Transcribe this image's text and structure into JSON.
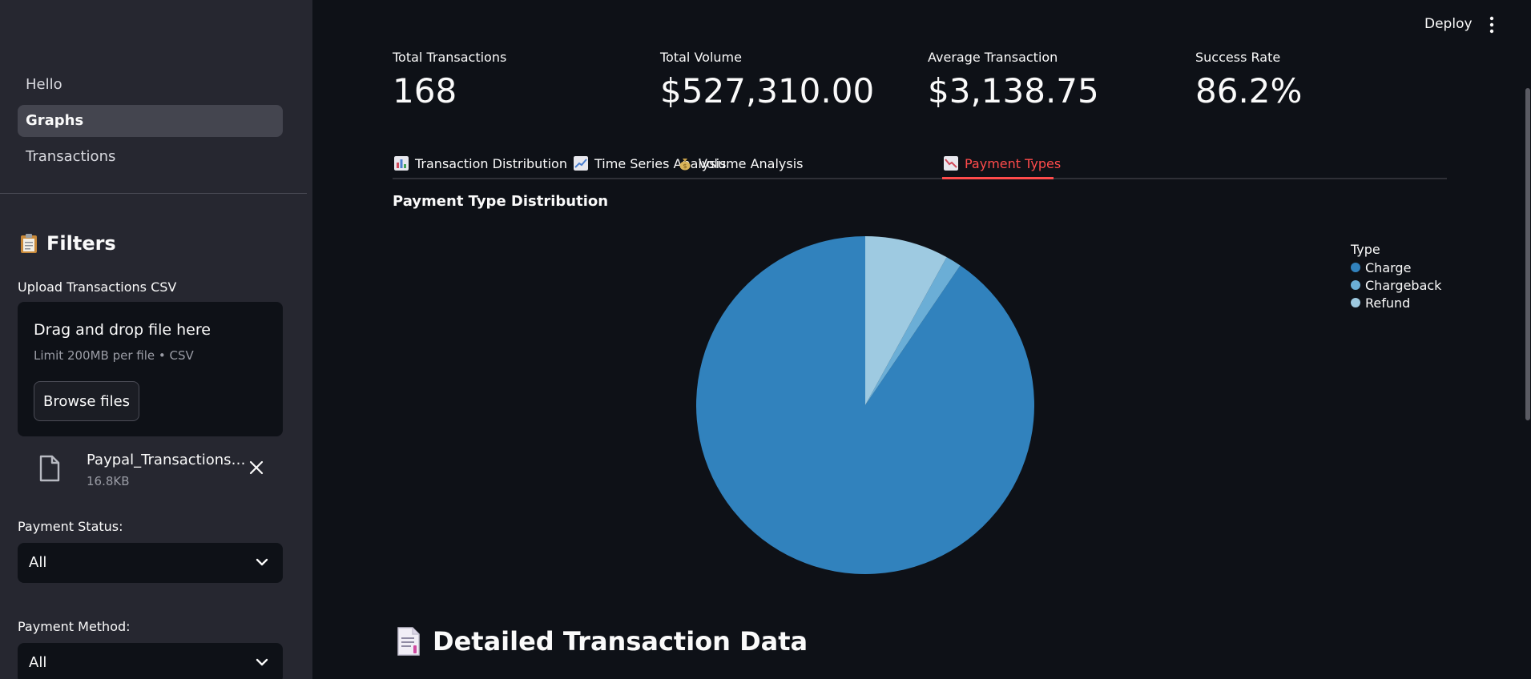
{
  "sidebar": {
    "nav": [
      {
        "label": "Hello",
        "active": false
      },
      {
        "label": "Graphs",
        "active": true
      },
      {
        "label": "Transactions",
        "active": false
      }
    ],
    "filters_title": "Filters",
    "upload_label": "Upload Transactions CSV",
    "dropzone_title": "Drag and drop file here",
    "dropzone_sub": "Limit 200MB per file • CSV",
    "browse_label": "Browse files",
    "file_name": "Paypal_Transactions…",
    "file_size": "16.8KB",
    "status_label": "Payment Status:",
    "status_value": "All",
    "method_label": "Payment Method:",
    "method_value": "All"
  },
  "header": {
    "deploy_label": "Deploy"
  },
  "metrics": [
    {
      "label": "Total Transactions",
      "value": "168"
    },
    {
      "label": "Total Volume",
      "value": "$527,310.00"
    },
    {
      "label": "Average Transaction",
      "value": "$3,138.75"
    },
    {
      "label": "Success Rate",
      "value": "86.2%"
    }
  ],
  "tabs": [
    {
      "label": "Transaction Distribution",
      "icon": "bar-chart-icon"
    },
    {
      "label": "Time Series Analysis",
      "icon": "line-chart-icon"
    },
    {
      "label": "Volume Analysis",
      "icon": "money-bag-icon"
    },
    {
      "label": "Payment Types",
      "icon": "chart-down-icon",
      "active": true
    }
  ],
  "chart_title": "Payment Type Distribution",
  "chart_data": {
    "type": "pie",
    "title": "Payment Type Distribution",
    "legend_title": "Type",
    "legend_position": "top-right",
    "slices": [
      {
        "name": "Charge",
        "value": 90.5,
        "color": "#3182bd"
      },
      {
        "name": "Chargeback",
        "value": 1.5,
        "color": "#6baed6"
      },
      {
        "name": "Refund",
        "value": 8.0,
        "color": "#9ecae1"
      }
    ]
  },
  "section_heading": "Detailed Transaction Data",
  "colors": {
    "accent": "#ff4b4b",
    "sidebar_bg": "#262730",
    "main_bg": "#0e1117"
  }
}
